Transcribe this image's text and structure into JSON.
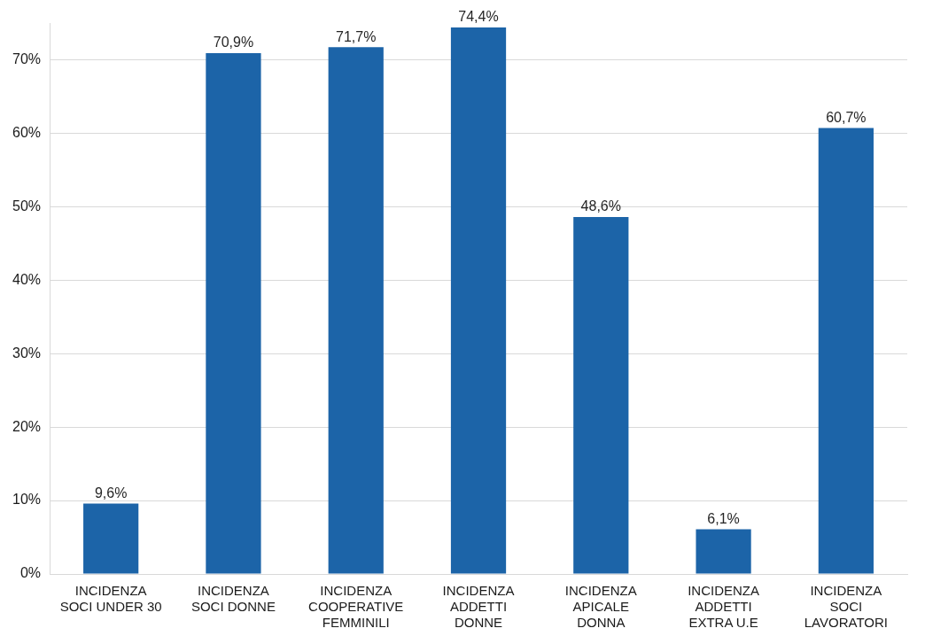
{
  "chart_data": {
    "type": "bar",
    "categories": [
      "INCIDENZA SOCI UNDER 30",
      "INCIDENZA SOCI DONNE",
      "INCIDENZA COOPERATIVE FEMMINILI",
      "INCIDENZA ADDETTI DONNE",
      "INCIDENZA APICALE DONNA",
      "INCIDENZA ADDETTI EXTRA U.E",
      "INCIDENZA SOCI LAVORATORI"
    ],
    "values": [
      9.6,
      70.9,
      71.7,
      74.4,
      48.6,
      6.1,
      60.7
    ],
    "value_labels": [
      "9,6%",
      "70,9%",
      "71,7%",
      "74,4%",
      "48,6%",
      "6,1%",
      "60,7%"
    ],
    "color": "#1c64a8",
    "ylim": [
      0,
      75
    ],
    "yticks": [
      {
        "value": 0,
        "label": "0%"
      },
      {
        "value": 10,
        "label": "10%"
      },
      {
        "value": 20,
        "label": "20%"
      },
      {
        "value": 30,
        "label": "30%"
      },
      {
        "value": 40,
        "label": "40%"
      },
      {
        "value": 50,
        "label": "50%"
      },
      {
        "value": 60,
        "label": "60%"
      },
      {
        "value": 70,
        "label": "70%"
      }
    ],
    "grid": "y",
    "legend": false
  }
}
